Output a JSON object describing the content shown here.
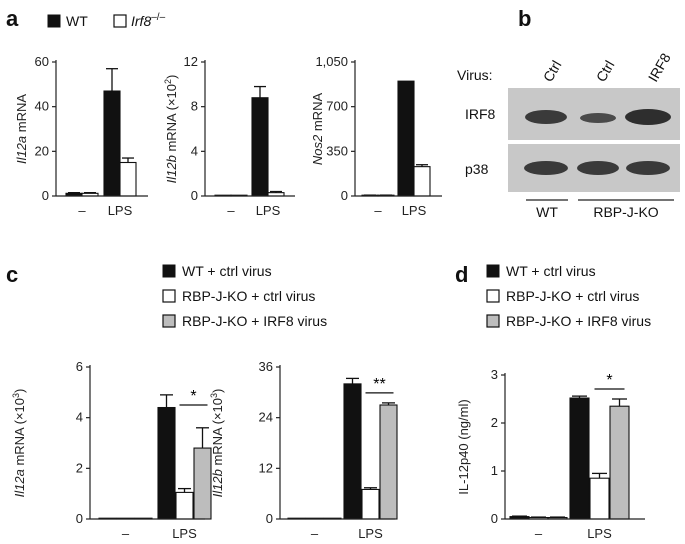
{
  "panels": {
    "a": "a",
    "b": "b",
    "c": "c",
    "d": "d"
  },
  "panel_a_legend": {
    "wt": "WT",
    "ko": "Irf8",
    "ko_sup": "–/–"
  },
  "panel_c_legend": [
    "WT + ctrl virus",
    "RBP-J-KO + ctrl virus",
    "RBP-J-KO + IRF8 virus"
  ],
  "panel_d_legend": [
    "WT + ctrl virus",
    "RBP-J-KO + ctrl virus",
    "RBP-J-KO + IRF8 virus"
  ],
  "blot": {
    "virus_label": "Virus:",
    "lanes": [
      "Ctrl",
      "Ctrl",
      "IRF8"
    ],
    "rows": [
      "IRF8",
      "p38"
    ],
    "groups": [
      "WT",
      "RBP-J-KO"
    ]
  },
  "colors": {
    "wt": "#111111",
    "ko": "#ffffff",
    "irf8": "#bdbdbd"
  },
  "chart_data": [
    {
      "id": "a1",
      "type": "bar",
      "categories": [
        "–",
        "LPS"
      ],
      "ylabel_italic": "Il12a",
      "ylabel_rest": " mRNA",
      "ylim": [
        0,
        60
      ],
      "yticks": [
        "0",
        "20",
        "40",
        "60"
      ],
      "ytick_values": [
        0,
        20,
        40,
        60
      ],
      "series": [
        {
          "name": "WT",
          "values": [
            1.2,
            47
          ],
          "errors": [
            0.3,
            10
          ]
        },
        {
          "name": "Irf8–/–",
          "values": [
            1.2,
            15
          ],
          "errors": [
            0.3,
            2
          ]
        }
      ]
    },
    {
      "id": "a2",
      "type": "bar",
      "categories": [
        "–",
        "LPS"
      ],
      "ylabel_italic": "Il12b",
      "ylabel_rest": " mRNA (×10",
      "ylabel_sup": "2",
      "ylabel_end": ")",
      "ylim": [
        0,
        12
      ],
      "yticks": [
        "0",
        "4",
        "8",
        "12"
      ],
      "ytick_values": [
        0,
        4,
        8,
        12
      ],
      "series": [
        {
          "name": "WT",
          "values": [
            0,
            8.8
          ],
          "errors": [
            0,
            1.0
          ]
        },
        {
          "name": "Irf8–/–",
          "values": [
            0,
            0.3
          ],
          "errors": [
            0,
            0.1
          ]
        }
      ]
    },
    {
      "id": "a3",
      "type": "bar",
      "categories": [
        "–",
        "LPS"
      ],
      "ylabel_italic": "Nos2",
      "ylabel_rest": " mRNA",
      "ylim": [
        0,
        1050
      ],
      "yticks": [
        "0",
        "350",
        "700",
        "1,050"
      ],
      "ytick_values": [
        0,
        350,
        700,
        1050
      ],
      "series": [
        {
          "name": "WT",
          "values": [
            5,
            900
          ],
          "errors": [
            2,
            0
          ]
        },
        {
          "name": "Irf8–/–",
          "values": [
            5,
            230
          ],
          "errors": [
            2,
            15
          ]
        }
      ]
    },
    {
      "id": "c1",
      "type": "bar",
      "categories": [
        "–",
        "LPS"
      ],
      "ylabel_italic": "Il12a",
      "ylabel_rest": " mRNA (×10",
      "ylabel_sup": "3",
      "ylabel_end": ")",
      "ylim": [
        0,
        6
      ],
      "yticks": [
        "0",
        "2",
        "4",
        "6"
      ],
      "ytick_values": [
        0,
        2,
        4,
        6
      ],
      "annotation": "*",
      "series": [
        {
          "name": "WT + ctrl virus",
          "values": [
            0,
            4.4
          ],
          "errors": [
            0,
            0.5
          ]
        },
        {
          "name": "RBP-J-KO + ctrl virus",
          "values": [
            0,
            1.05
          ],
          "errors": [
            0,
            0.15
          ]
        },
        {
          "name": "RBP-J-KO + IRF8 virus",
          "values": [
            0,
            2.8
          ],
          "errors": [
            0,
            0.8
          ]
        }
      ]
    },
    {
      "id": "c2",
      "type": "bar",
      "categories": [
        "–",
        "LPS"
      ],
      "ylabel_italic": "Il12b",
      "ylabel_rest": " mRNA (×10",
      "ylabel_sup": "3",
      "ylabel_end": ")",
      "ylim": [
        0,
        36
      ],
      "yticks": [
        "0",
        "12",
        "24",
        "36"
      ],
      "ytick_values": [
        0,
        12,
        24,
        36
      ],
      "annotation": "**",
      "series": [
        {
          "name": "WT + ctrl virus",
          "values": [
            0,
            32
          ],
          "errors": [
            0,
            1.3
          ]
        },
        {
          "name": "RBP-J-KO + ctrl virus",
          "values": [
            0,
            7
          ],
          "errors": [
            0,
            0.4
          ]
        },
        {
          "name": "RBP-J-KO + IRF8 virus",
          "values": [
            0,
            27
          ],
          "errors": [
            0,
            0.5
          ]
        }
      ]
    },
    {
      "id": "d1",
      "type": "bar",
      "categories": [
        "–",
        "LPS"
      ],
      "ylabel_italic": "",
      "ylabel_rest": "IL-12p40 (ng/ml)",
      "ylim": [
        0,
        3
      ],
      "yticks": [
        "0",
        "1",
        "2",
        "3"
      ],
      "ytick_values": [
        0,
        1,
        2,
        3
      ],
      "annotation": "*",
      "series": [
        {
          "name": "WT + ctrl virus",
          "values": [
            0.05,
            2.52
          ],
          "errors": [
            0.01,
            0.04
          ]
        },
        {
          "name": "RBP-J-KO + ctrl virus",
          "values": [
            0.03,
            0.85
          ],
          "errors": [
            0.01,
            0.1
          ]
        },
        {
          "name": "RBP-J-KO + IRF8 virus",
          "values": [
            0.03,
            2.35
          ],
          "errors": [
            0.01,
            0.15
          ]
        }
      ]
    }
  ]
}
